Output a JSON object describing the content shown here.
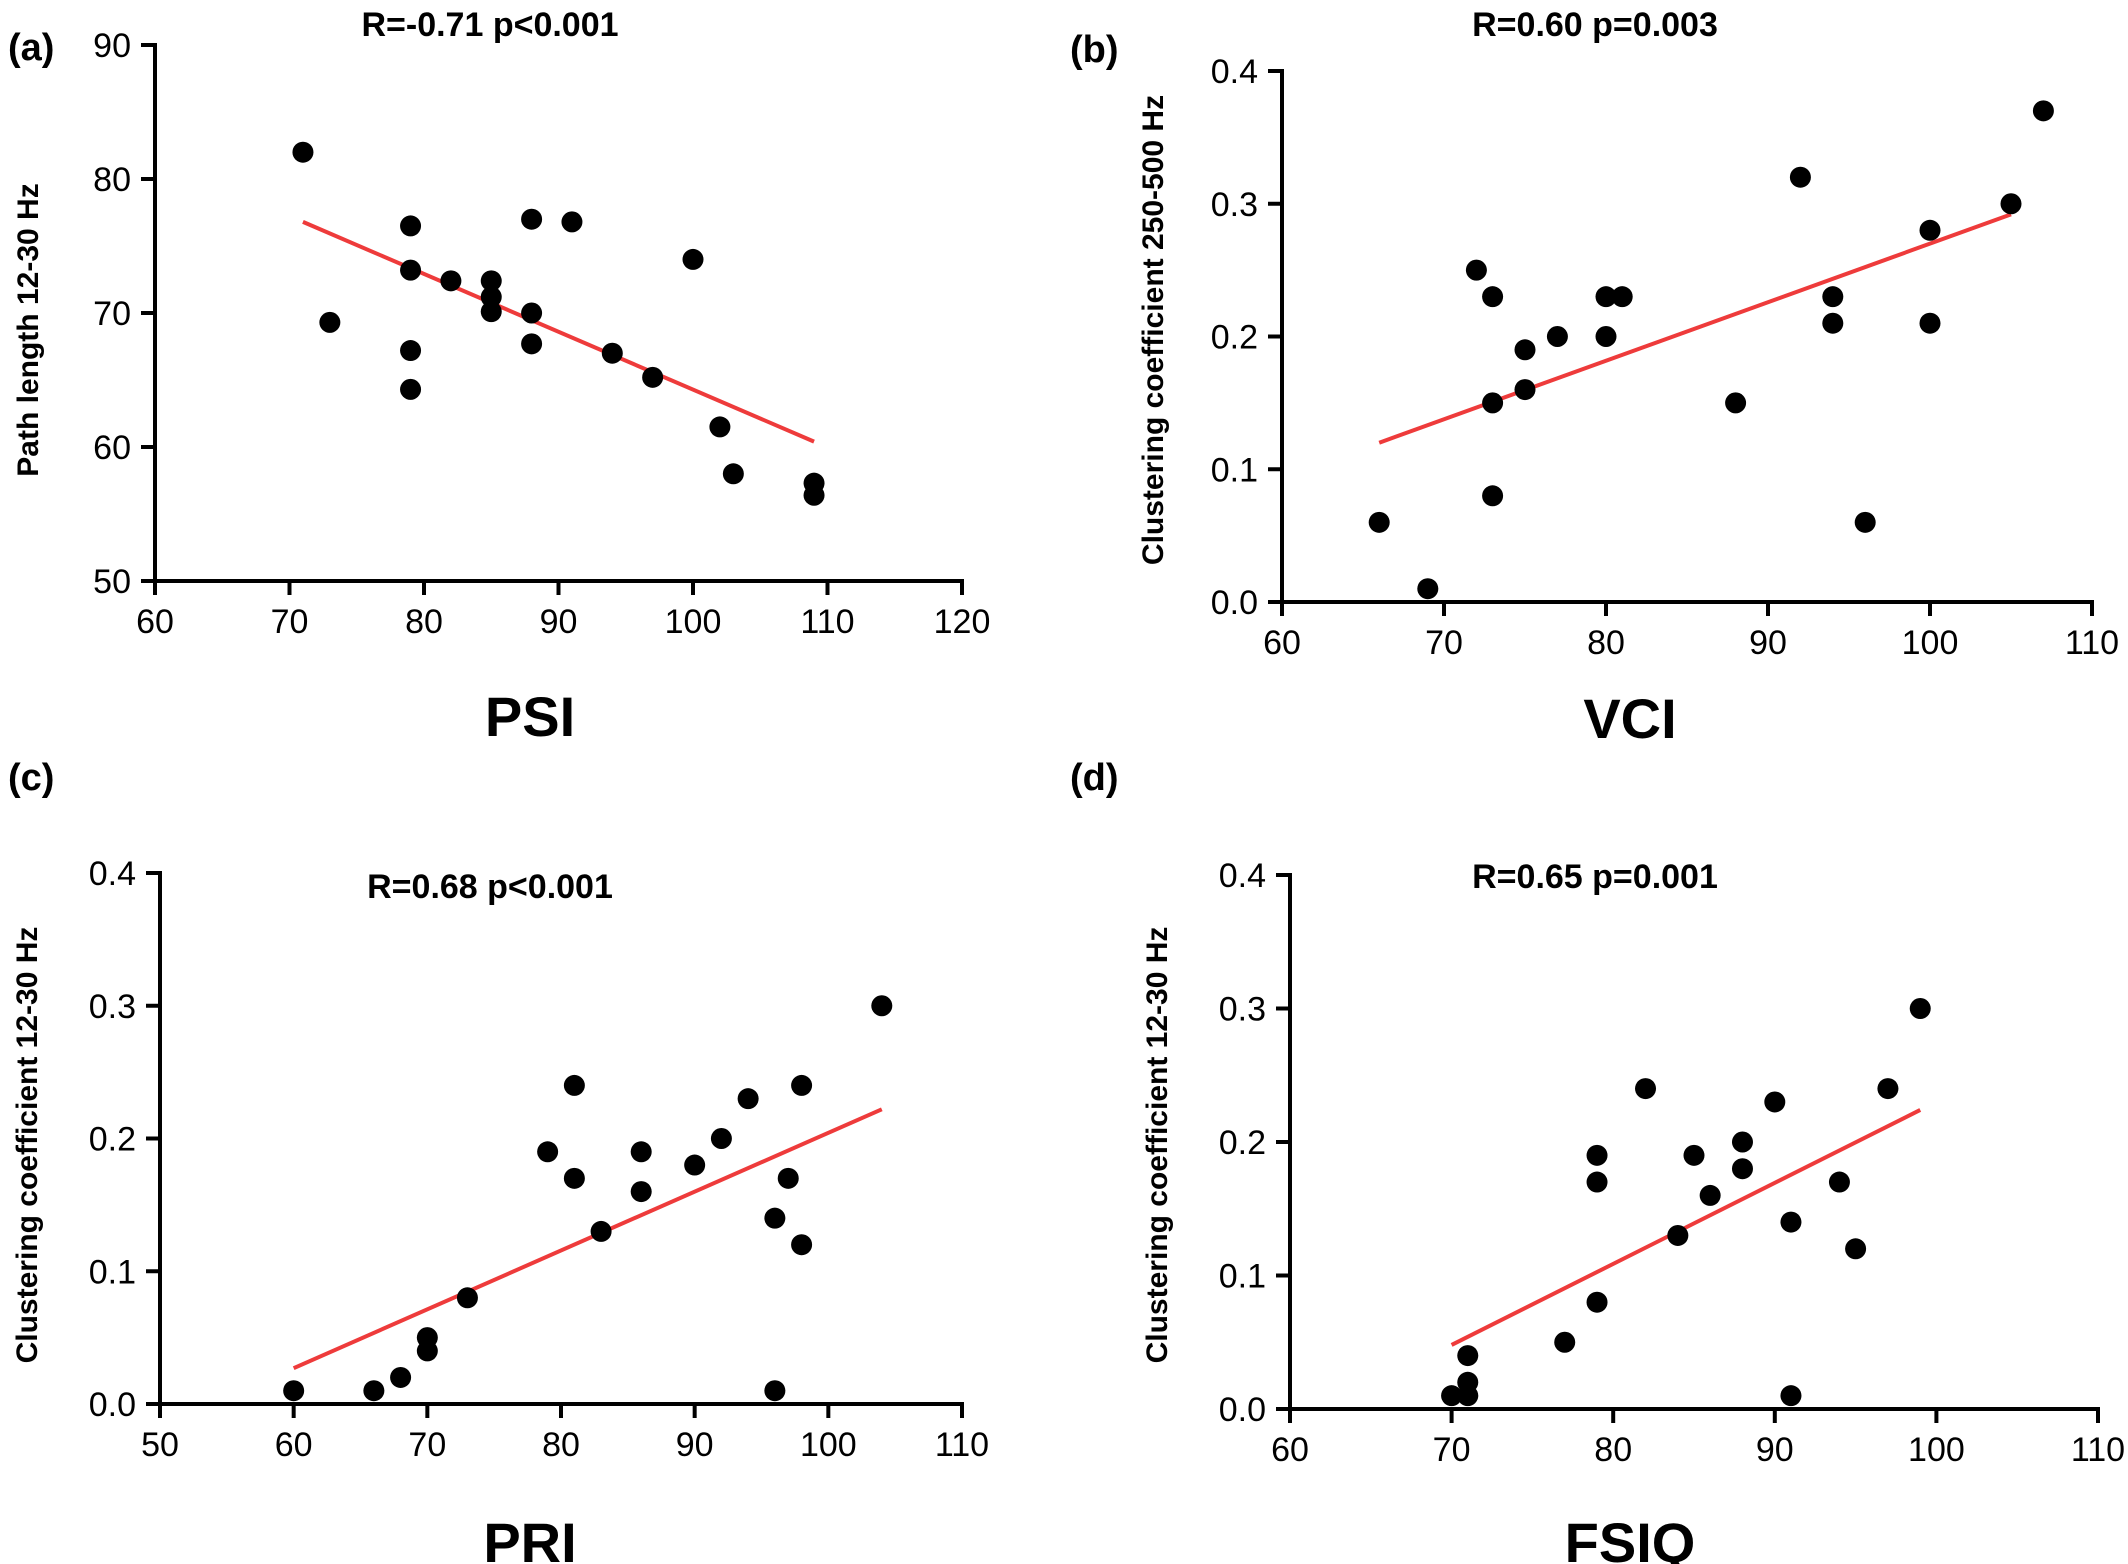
{
  "figure": {
    "panels": [
      {
        "letter": "(a)",
        "stat": "R=-0.71 p<0.001"
      },
      {
        "letter": "(b)",
        "stat": "R=0.60 p=0.003"
      },
      {
        "letter": "(c)",
        "stat": "R=0.68 p<0.001"
      },
      {
        "letter": "(d)",
        "stat": "R=0.65 p=0.001"
      }
    ]
  },
  "colors": {
    "points": "#000000",
    "fit_line": "#ee3b3b",
    "axes": "#000000"
  },
  "chart_data": [
    {
      "type": "scatter",
      "xlabel": "PSI",
      "ylabel": "Path length 12-30 Hz",
      "xlim": [
        60,
        120
      ],
      "ylim": [
        50,
        90
      ],
      "xticks": [
        60,
        70,
        80,
        90,
        100,
        110,
        120
      ],
      "yticks": [
        50,
        60,
        70,
        80,
        90
      ],
      "points": [
        [
          71,
          82
        ],
        [
          73,
          69.3
        ],
        [
          79,
          76.5
        ],
        [
          79,
          73.2
        ],
        [
          79,
          67.2
        ],
        [
          79,
          64.3
        ],
        [
          82,
          72.4
        ],
        [
          85,
          72.4
        ],
        [
          85,
          71.2
        ],
        [
          85,
          70.1
        ],
        [
          88,
          77
        ],
        [
          88,
          70
        ],
        [
          88,
          67.7
        ],
        [
          91,
          76.8
        ],
        [
          94,
          67
        ],
        [
          97,
          65.2
        ],
        [
          100,
          74
        ],
        [
          102,
          61.5
        ],
        [
          103,
          58
        ],
        [
          109,
          57.3
        ],
        [
          109,
          56.4
        ]
      ],
      "fit_line": [
        [
          71,
          76.8
        ],
        [
          109,
          60.4
        ]
      ]
    },
    {
      "type": "scatter",
      "xlabel": "VCI",
      "ylabel": "Clustering coefficient 250-500 Hz",
      "xlim": [
        60,
        110
      ],
      "ylim": [
        0,
        0.4
      ],
      "xticks": [
        60,
        70,
        80,
        90,
        100,
        110
      ],
      "yticks": [
        0.0,
        0.1,
        0.2,
        0.3,
        0.4
      ],
      "points": [
        [
          66,
          0.06
        ],
        [
          69,
          0.01
        ],
        [
          72,
          0.25
        ],
        [
          73,
          0.23
        ],
        [
          73,
          0.15
        ],
        [
          73,
          0.08
        ],
        [
          75,
          0.19
        ],
        [
          75,
          0.16
        ],
        [
          77,
          0.2
        ],
        [
          80,
          0.23
        ],
        [
          80,
          0.2
        ],
        [
          81,
          0.23
        ],
        [
          88,
          0.15
        ],
        [
          92,
          0.32
        ],
        [
          94,
          0.23
        ],
        [
          94,
          0.21
        ],
        [
          96,
          0.06
        ],
        [
          100,
          0.28
        ],
        [
          100,
          0.21
        ],
        [
          105,
          0.3
        ],
        [
          107,
          0.37
        ]
      ],
      "fit_line": [
        [
          66,
          0.12
        ],
        [
          105,
          0.292
        ]
      ]
    },
    {
      "type": "scatter",
      "xlabel": "PRI",
      "ylabel": "Clustering coefficient 12-30 Hz",
      "xlim": [
        50,
        110
      ],
      "ylim": [
        0,
        0.4
      ],
      "xticks": [
        50,
        60,
        70,
        80,
        90,
        100,
        110
      ],
      "yticks": [
        0.0,
        0.1,
        0.2,
        0.3,
        0.4
      ],
      "points": [
        [
          60,
          0.01
        ],
        [
          66,
          0.01
        ],
        [
          68,
          0.02
        ],
        [
          70,
          0.05
        ],
        [
          70,
          0.04
        ],
        [
          73,
          0.08
        ],
        [
          79,
          0.19
        ],
        [
          81,
          0.24
        ],
        [
          81,
          0.17
        ],
        [
          83,
          0.13
        ],
        [
          86,
          0.19
        ],
        [
          86,
          0.16
        ],
        [
          90,
          0.18
        ],
        [
          92,
          0.2
        ],
        [
          94,
          0.23
        ],
        [
          96,
          0.14
        ],
        [
          96,
          0.01
        ],
        [
          97,
          0.17
        ],
        [
          98,
          0.24
        ],
        [
          98,
          0.12
        ],
        [
          104,
          0.3
        ]
      ],
      "fit_line": [
        [
          60,
          0.027
        ],
        [
          104,
          0.222
        ]
      ]
    },
    {
      "type": "scatter",
      "xlabel": "FSIQ",
      "ylabel": "Clustering coefficient 12-30 Hz",
      "xlim": [
        60,
        110
      ],
      "ylim": [
        0,
        0.4
      ],
      "xticks": [
        60,
        70,
        80,
        90,
        100,
        110
      ],
      "yticks": [
        0.0,
        0.1,
        0.2,
        0.3,
        0.4
      ],
      "points": [
        [
          70,
          0.01
        ],
        [
          71,
          0.04
        ],
        [
          71,
          0.02
        ],
        [
          71,
          0.01
        ],
        [
          77,
          0.05
        ],
        [
          79,
          0.19
        ],
        [
          79,
          0.17
        ],
        [
          79,
          0.08
        ],
        [
          82,
          0.24
        ],
        [
          84,
          0.13
        ],
        [
          85,
          0.19
        ],
        [
          86,
          0.16
        ],
        [
          88,
          0.2
        ],
        [
          88,
          0.18
        ],
        [
          90,
          0.23
        ],
        [
          91,
          0.14
        ],
        [
          91,
          0.01
        ],
        [
          94,
          0.17
        ],
        [
          95,
          0.12
        ],
        [
          97,
          0.24
        ],
        [
          99,
          0.3
        ]
      ],
      "fit_line": [
        [
          70,
          0.048
        ],
        [
          99,
          0.224
        ]
      ]
    }
  ]
}
